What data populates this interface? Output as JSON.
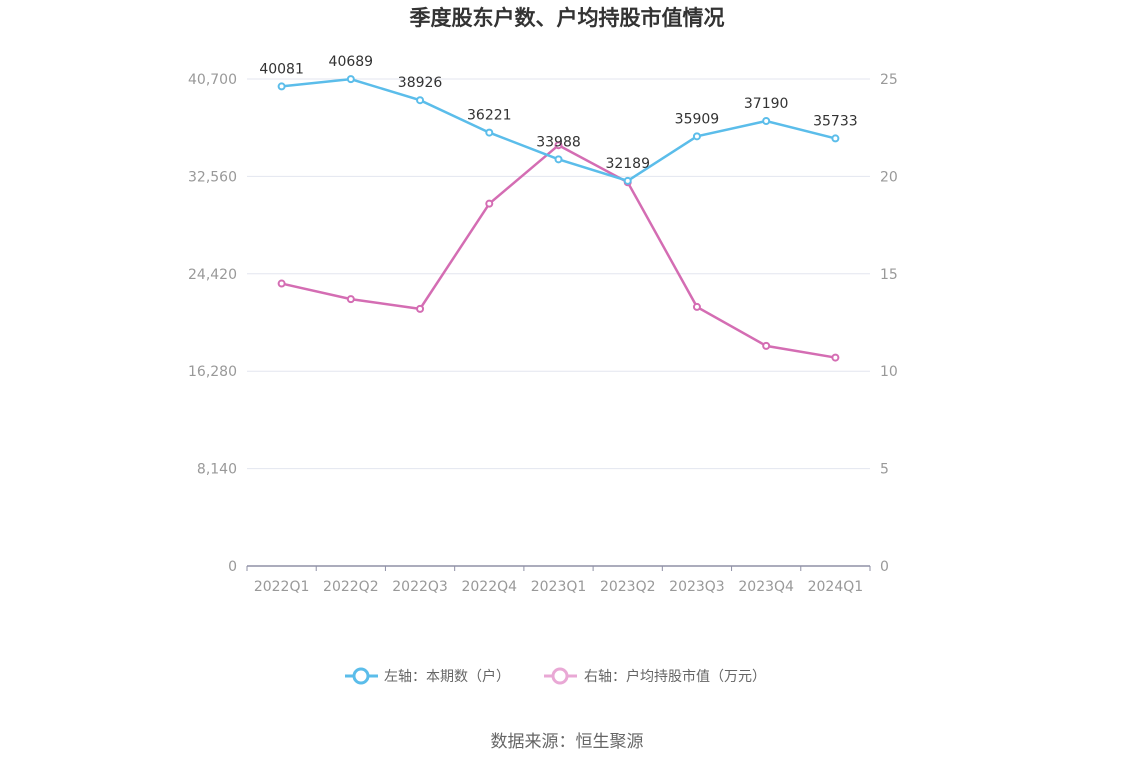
{
  "chart_data": {
    "type": "line",
    "title": "季度股东户数、户均持股市值情况",
    "categories": [
      "2022Q1",
      "2022Q2",
      "2022Q3",
      "2022Q4",
      "2023Q1",
      "2023Q2",
      "2023Q3",
      "2023Q4",
      "2024Q1"
    ],
    "left_axis": {
      "ticks": [
        "0",
        "8,140",
        "16,280",
        "24,420",
        "32,560",
        "40,700"
      ],
      "range": [
        0,
        40700
      ]
    },
    "right_axis": {
      "ticks": [
        "0",
        "5",
        "10",
        "15",
        "20",
        "25"
      ],
      "range": [
        0,
        25
      ]
    },
    "grid": true,
    "legend_position": "bottom",
    "series": [
      {
        "name": "左轴：本期数（户）",
        "axis": "left",
        "color": "#5bbdea",
        "values": [
          40081,
          40689,
          38926,
          36221,
          33988,
          32189,
          35909,
          37190,
          35733
        ],
        "labels": [
          "40081",
          "40689",
          "38926",
          "36221",
          "33988",
          "32189",
          "35909",
          "37190",
          "35733"
        ]
      },
      {
        "name": "右轴：户均持股市值（万元）",
        "axis": "right",
        "color": "#d46db3",
        "values": [
          14.5,
          13.7,
          13.2,
          18.6,
          21.6,
          19.7,
          13.3,
          11.3,
          10.7
        ]
      }
    ],
    "source": "数据来源：恒生聚源"
  }
}
